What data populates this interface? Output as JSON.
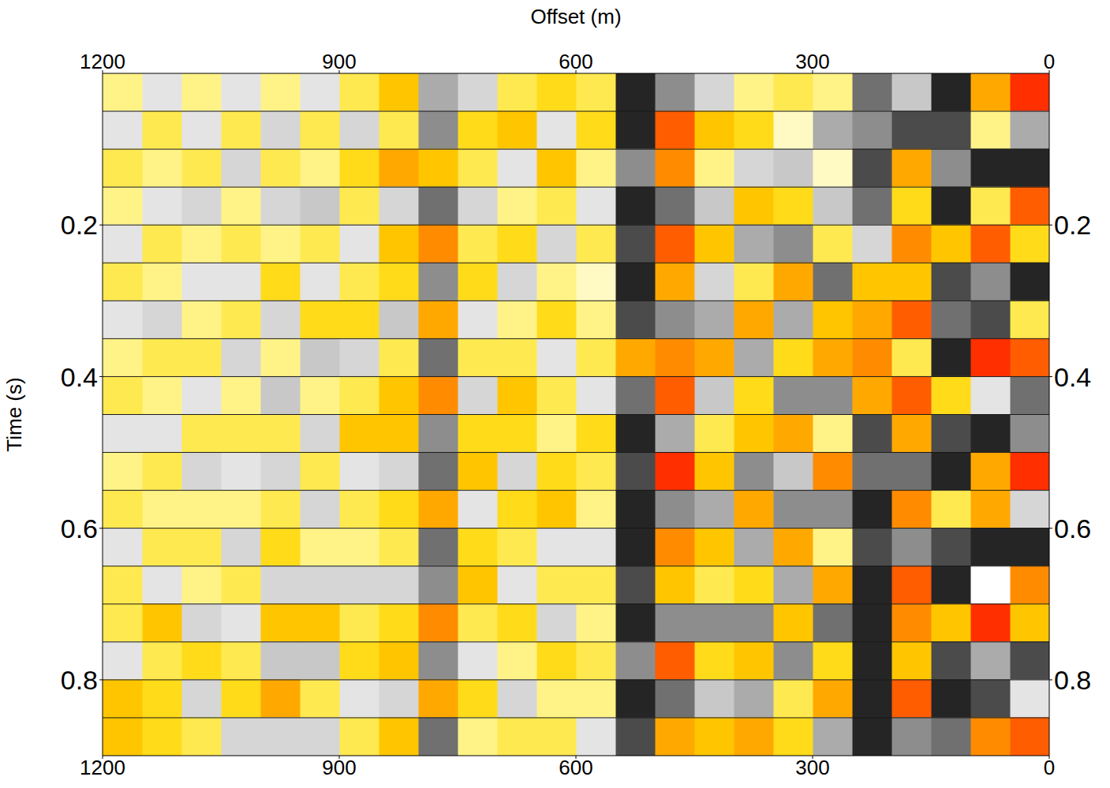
{
  "chart_data": {
    "type": "heatmap",
    "x_label": "Offset (m)",
    "y_label": "Time (s)",
    "xlim": [
      1200,
      0
    ],
    "xticks": [
      0,
      300,
      600,
      900,
      1200
    ],
    "ylim": [
      0.9,
      0
    ],
    "yticks": [
      0.2,
      0.4,
      0.6,
      0.8
    ],
    "grid": true,
    "timing_lines": [
      0.05,
      0.1,
      0.15,
      0.2,
      0.25,
      0.3,
      0.35,
      0.4,
      0.45,
      0.5,
      0.55,
      0.6,
      0.65,
      0.7,
      0.75,
      0.8,
      0.85
    ],
    "zlim": [
      -1,
      1
    ],
    "x": [
      25,
      75,
      125,
      175,
      225,
      275,
      325,
      375,
      425,
      475,
      525,
      575,
      625,
      675,
      725,
      775,
      825,
      875,
      925,
      975,
      1025,
      1075,
      1125,
      1175
    ],
    "y": [
      0.025,
      0.075,
      0.125,
      0.175,
      0.225,
      0.275,
      0.325,
      0.375,
      0.425,
      0.475,
      0.525,
      0.575,
      0.625,
      0.675,
      0.725,
      0.775,
      0.825,
      0.875
    ],
    "values": [
      [
        0.9,
        -0.5,
        -0.9,
        0.8,
        0.4,
        -0.9,
        0.3,
        0.8,
        -0.7,
        -0.6,
        0.9,
        -0.3,
        -0.9,
        0.7,
        0.5,
        -0.8,
        -0.2,
        0.8
      ],
      [
        0.6,
        0.2,
        -0.9,
        0.3,
        0.8,
        -0.6,
        -0.8,
        0.9,
        -0.2,
        -0.9,
        0.6,
        0.6,
        -0.9,
        0.0,
        0.9,
        -0.5,
        -0.8,
        0.7
      ],
      [
        -0.9,
        -0.8,
        -0.6,
        -0.9,
        0.5,
        -0.8,
        -0.7,
        -0.9,
        0.4,
        -0.8,
        -0.9,
        0.3,
        -0.8,
        -0.9,
        0.5,
        -0.8,
        -0.9,
        -0.7
      ],
      [
        -0.4,
        -0.8,
        0.6,
        0.4,
        0.7,
        0.5,
        0.8,
        0.3,
        0.8,
        0.6,
        -0.7,
        0.7,
        -0.6,
        0.8,
        0.7,
        0.5,
        0.8,
        -0.6
      ],
      [
        -0.7,
        -0.6,
        -0.8,
        -0.7,
        -0.3,
        0.5,
        0.6,
        0.7,
        0.6,
        -0.8,
        -0.7,
        -0.9,
        -0.8,
        -0.9,
        -0.9,
        -0.9,
        -0.9,
        -0.9
      ],
      [
        0.2,
        -0.5,
        0.1,
        -0.4,
        0.3,
        -0.7,
        0.5,
        0.6,
        -0.6,
        0.2,
        0.7,
        -0.6,
        0.2,
        0.6,
        -0.7,
        0.4,
        0.6,
        -0.5
      ],
      [
        0.3,
        0.1,
        -0.4,
        0.4,
        -0.6,
        0.6,
        -0.5,
        0.4,
        -0.6,
        0.6,
        -0.4,
        -0.6,
        0.6,
        -0.5,
        0.5,
        -0.6,
        0.3,
        0.4
      ],
      [
        0.2,
        0.4,
        -0.3,
        0.5,
        -0.5,
        0.3,
        0.6,
        -0.5,
        0.4,
        0.5,
        -0.6,
        0.6,
        -0.5,
        0.4,
        -0.6,
        0.5,
        -0.5,
        0.6
      ],
      [
        -0.3,
        0.5,
        0.2,
        -0.4,
        0.5,
        -0.3,
        -0.5,
        0.6,
        -0.4,
        0.3,
        0.5,
        -0.5,
        0.5,
        0.3,
        -0.6,
        0.4,
        -0.4,
        0.5
      ],
      [
        -0.6,
        0.8,
        0.7,
        -0.7,
        0.8,
        0.6,
        -0.6,
        0.7,
        0.8,
        -0.5,
        0.9,
        -0.6,
        0.7,
        0.5,
        -0.6,
        0.8,
        -0.7,
        0.6
      ],
      [
        -0.9,
        -0.9,
        -0.6,
        -0.9,
        -0.8,
        -0.9,
        -0.8,
        0.6,
        -0.7,
        -0.9,
        -0.8,
        -0.9,
        -0.9,
        -0.8,
        -0.9,
        -0.6,
        -0.9,
        -0.8
      ],
      [
        0.3,
        0.4,
        0.2,
        -0.2,
        0.3,
        0.1,
        0.2,
        0.3,
        -0.2,
        0.4,
        0.3,
        0.2,
        -0.2,
        0.3,
        0.2,
        0.3,
        0.2,
        -0.2
      ],
      [
        0.4,
        -0.2,
        0.5,
        0.3,
        -0.3,
        0.2,
        0.4,
        -0.2,
        0.3,
        0.2,
        0.4,
        0.5,
        -0.2,
        0.3,
        -0.3,
        0.4,
        0.2,
        0.3
      ],
      [
        0.3,
        0.5,
        -0.2,
        0.2,
        0.4,
        -0.3,
        0.2,
        0.3,
        0.5,
        0.4,
        -0.3,
        0.4,
        0.3,
        -0.2,
        0.4,
        0.2,
        -0.3,
        0.3
      ],
      [
        -0.3,
        0.4,
        0.3,
        -0.3,
        0.3,
        0.4,
        -0.2,
        0.3,
        -0.3,
        0.4,
        0.5,
        -0.2,
        0.4,
        0.5,
        0.3,
        -0.2,
        0.4,
        0.2
      ],
      [
        -0.5,
        -0.6,
        0.5,
        -0.7,
        0.7,
        -0.6,
        0.6,
        -0.7,
        0.7,
        -0.6,
        -0.7,
        0.6,
        -0.7,
        -0.6,
        0.7,
        -0.6,
        0.6,
        -0.7
      ],
      [
        0.5,
        0.3,
        0.6,
        -0.3,
        0.5,
        0.4,
        -0.4,
        0.3,
        0.5,
        0.5,
        -0.3,
        0.4,
        0.3,
        -0.3,
        0.4,
        0.5,
        -0.3,
        0.5
      ],
      [
        0.3,
        -0.3,
        0.4,
        0.3,
        -0.2,
        0.3,
        0.4,
        -0.3,
        0.3,
        0.5,
        -0.2,
        0.3,
        0.2,
        -0.3,
        0.3,
        0.4,
        -0.2,
        0.3
      ],
      [
        -0.2,
        0.3,
        0.2,
        -0.4,
        0.3,
        -0.2,
        0.4,
        -0.4,
        0.2,
        -0.3,
        0.3,
        -0.3,
        0.2,
        -0.3,
        0.5,
        -0.4,
        0.3,
        -0.3
      ],
      [
        0.2,
        -0.3,
        0.3,
        -0.3,
        0.2,
        0.4,
        -0.3,
        0.2,
        -0.4,
        0.3,
        -0.3,
        0.3,
        0.4,
        -0.3,
        0.5,
        -0.4,
        0.6,
        -0.3
      ],
      [
        -0.2,
        0.3,
        -0.3,
        0.2,
        0.3,
        -0.2,
        0.3,
        -0.3,
        0.2,
        0.3,
        -0.2,
        0.2,
        -0.3,
        0.3,
        -0.2,
        0.3,
        0.4,
        -0.3
      ],
      [
        0.2,
        -0.2,
        0.3,
        -0.3,
        0.2,
        -0.2,
        0.2,
        0.3,
        -0.2,
        0.3,
        -0.3,
        0.2,
        0.3,
        0.2,
        -0.3,
        0.4,
        -0.3,
        0.3
      ],
      [
        -0.2,
        0.3,
        0.2,
        -0.2,
        0.3,
        0.2,
        -0.3,
        0.3,
        0.2,
        -0.2,
        0.3,
        0.2,
        0.3,
        -0.2,
        0.5,
        0.3,
        0.4,
        0.4
      ],
      [
        0.2,
        -0.2,
        0.3,
        0.2,
        -0.2,
        0.3,
        -0.2,
        0.2,
        0.3,
        -0.2,
        0.2,
        0.3,
        -0.2,
        0.3,
        0.3,
        -0.2,
        0.5,
        0.5
      ]
    ]
  }
}
